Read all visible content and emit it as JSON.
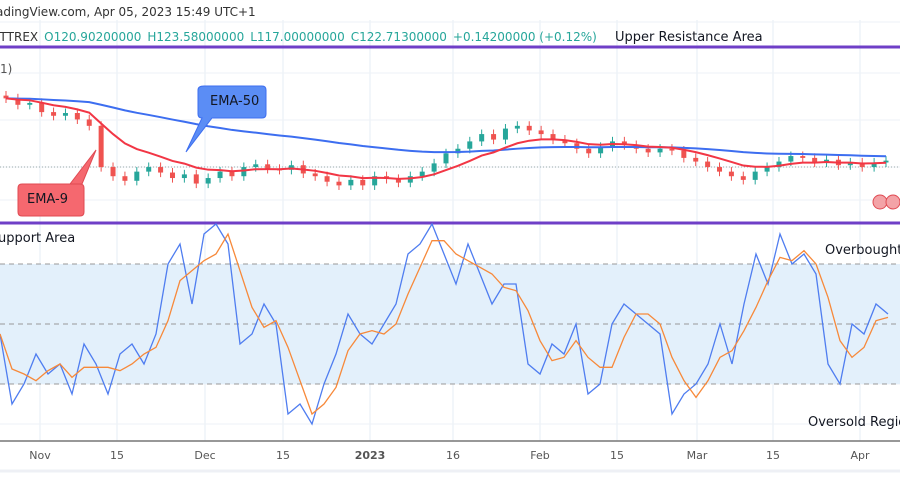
{
  "header": {
    "source_line": "adingView.com, Apr 05, 2023 15:49 UTC+1",
    "exchange": "ITTREX",
    "open": "O120.90200000",
    "high": "H123.58000000",
    "low": "L117.00000000",
    "close": "C122.71300000",
    "change": "+0.14200000 (+0.12%)",
    "indicator_fragment": "1)"
  },
  "annotations": {
    "upper_resistance": "Upper Resistance Area",
    "support": "upport Area",
    "overbought": "Overbought R",
    "oversold": "Oversold Region",
    "ema50": "EMA-50",
    "ema9": "EMA-9"
  },
  "colors": {
    "up": "#26a69a",
    "down": "#ef5350",
    "ema9": "#f23645",
    "ema50": "#3d6ef0",
    "k": "#4f7df0",
    "d": "#f7893a",
    "zone": "#6f3fc7",
    "band": "#e3f0fb"
  },
  "chart_data": [
    {
      "type": "candlestick",
      "title": "",
      "closes": [
        129.5,
        128.8,
        129.0,
        128.0,
        127.6,
        127.9,
        127.2,
        126.5,
        122.0,
        121.0,
        120.5,
        121.5,
        122.0,
        121.4,
        120.8,
        121.2,
        120.2,
        120.8,
        121.5,
        121.0,
        122.0,
        122.3,
        121.8,
        121.7,
        122.2,
        121.3,
        121.0,
        120.4,
        120.0,
        120.6,
        120.0,
        121.0,
        120.7,
        120.3,
        121.0,
        121.5,
        122.4,
        123.5,
        124.0,
        124.8,
        125.6,
        125.0,
        126.2,
        126.5,
        126.0,
        125.6,
        125.0,
        124.6,
        124.0,
        123.5,
        124.2,
        124.8,
        124.4,
        124.0,
        123.6,
        124.0,
        123.8,
        123.0,
        122.6,
        122.0,
        121.5,
        121.0,
        120.6,
        121.5,
        122.0,
        122.6,
        123.2,
        123.0,
        122.5,
        122.8,
        122.2,
        122.5,
        122.0,
        122.5,
        122.7
      ],
      "overlays": [
        "EMA-9",
        "EMA-50"
      ],
      "ylim": [
        116,
        135
      ]
    },
    {
      "type": "line",
      "title": "",
      "k": [
        45,
        10,
        20,
        35,
        25,
        30,
        15,
        40,
        30,
        15,
        35,
        40,
        30,
        45,
        80,
        90,
        60,
        95,
        100,
        90,
        40,
        45,
        60,
        50,
        5,
        10,
        0,
        20,
        35,
        55,
        45,
        40,
        50,
        60,
        85,
        90,
        100,
        85,
        70,
        90,
        75,
        60,
        70,
        70,
        30,
        25,
        40,
        35,
        50,
        15,
        20,
        50,
        60,
        55,
        50,
        45,
        5,
        15,
        20,
        30,
        50,
        30,
        60,
        85,
        70,
        95,
        80,
        85,
        75,
        30,
        20,
        50,
        45,
        60,
        55
      ],
      "ylim": [
        0,
        100
      ],
      "levels": [
        80,
        50,
        20
      ]
    }
  ],
  "x_axis": {
    "ticks": [
      "Nov",
      "15",
      "Dec",
      "15",
      "2023",
      "16",
      "Feb",
      "15",
      "Mar",
      "15",
      "Apr"
    ]
  }
}
